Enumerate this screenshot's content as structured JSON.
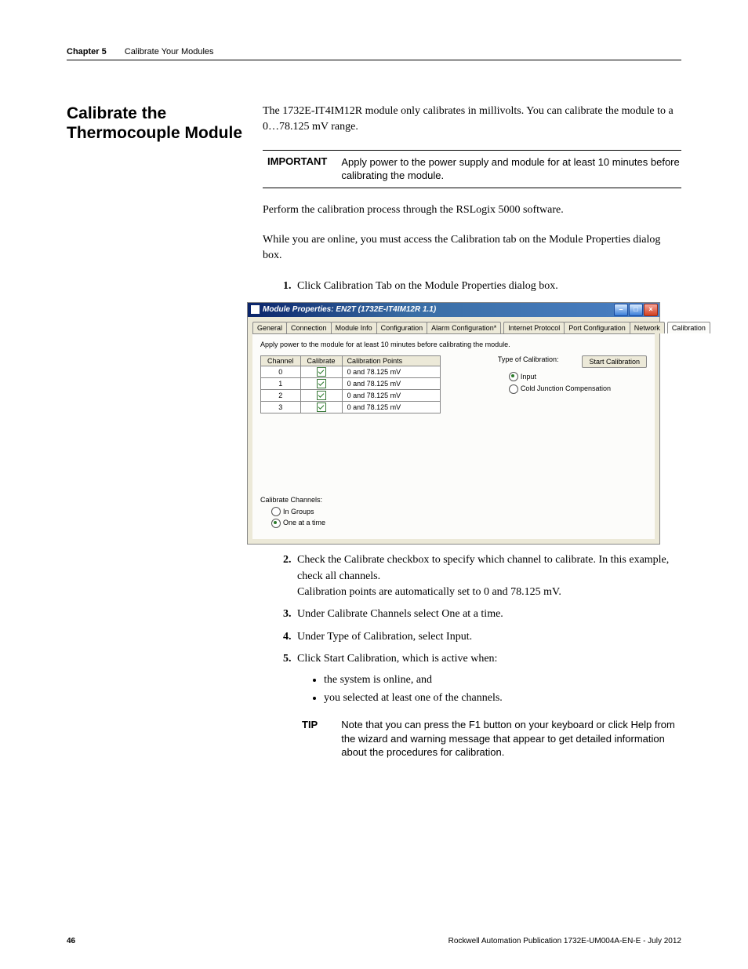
{
  "header": {
    "chapter": "Chapter 5",
    "title": "Calibrate Your Modules"
  },
  "section_title": "Calibrate the Thermocouple Module",
  "intro": "The 1732E-IT4IM12R module only calibrates in millivolts. You can calibrate the module to a 0…78.125 mV range.",
  "important": {
    "label": "IMPORTANT",
    "text": "Apply power to the power supply and module for at least 10 minutes before calibrating the module."
  },
  "para2": "Perform the calibration process through the RSLogix 5000 software.",
  "para3": "While you are online, you must access the Calibration tab on the Module Properties dialog box.",
  "step1": "Click Calibration Tab on the Module Properties dialog box.",
  "dialog": {
    "title": "Module Properties: EN2T (1732E-IT4IM12R 1.1)",
    "tabs": [
      "General",
      "Connection",
      "Module Info",
      "Configuration",
      "Alarm Configuration*",
      "Internet Protocol",
      "Port Configuration",
      "Network",
      "Calibration"
    ],
    "note": "Apply power to the module for at least 10 minutes before calibrating the module.",
    "table": {
      "cols": [
        "Channel",
        "Calibrate",
        "Calibration Points"
      ],
      "rows": [
        [
          "0",
          "✓",
          "0 and 78.125 mV"
        ],
        [
          "1",
          "✓",
          "0 and 78.125 mV"
        ],
        [
          "2",
          "✓",
          "0 and 78.125 mV"
        ],
        [
          "3",
          "✓",
          "0 and 78.125 mV"
        ]
      ]
    },
    "type_label": "Type of Calibration:",
    "type_opt1": "Input",
    "type_opt2": "Cold Junction Compensation",
    "start_btn": "Start Calibration",
    "cc_label": "Calibrate Channels:",
    "cc_opt1": "In Groups",
    "cc_opt2": "One at a time"
  },
  "step2a": "Check the Calibrate checkbox to specify which channel to calibrate. In this example, check all channels.",
  "step2b": "Calibration points are automatically set to 0 and 78.125 mV.",
  "step3": "Under Calibrate Channels select One at a time.",
  "step4": "Under Type of Calibration, select Input.",
  "step5": "Click Start Calibration, which is active when:",
  "bullet1": "the system is online, and",
  "bullet2": "you selected at least one of the channels.",
  "tip": {
    "label": "TIP",
    "text": "Note that you can press the F1 button on your keyboard or click Help from the wizard and warning message that appear to get detailed information about the procedures for calibration."
  },
  "footer": {
    "page": "46",
    "pub": "Rockwell Automation Publication 1732E-UM004A-EN-E - July 2012"
  }
}
